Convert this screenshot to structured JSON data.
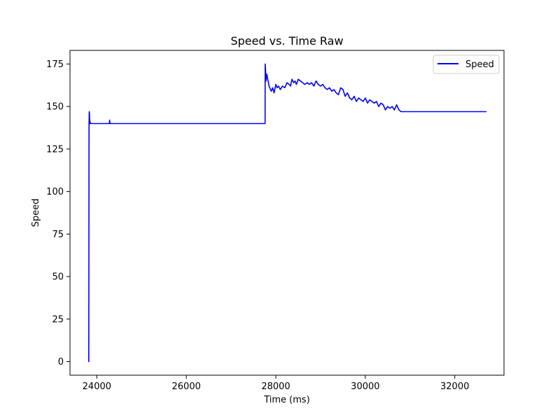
{
  "chart_data": {
    "type": "line",
    "title": "Speed vs. Time Raw",
    "xlabel": "Time (ms)",
    "ylabel": "Speed",
    "xlim": [
      23400,
      33100
    ],
    "ylim": [
      -8,
      183
    ],
    "xticks": [
      24000,
      26000,
      28000,
      30000,
      32000
    ],
    "yticks": [
      0,
      25,
      50,
      75,
      100,
      125,
      150,
      175
    ],
    "grid": false,
    "legend_position": "top-right",
    "series": [
      {
        "name": "Speed",
        "color": "#0000ff",
        "x": [
          23820,
          23822,
          23824,
          23826,
          23828,
          23831,
          23835,
          23838,
          23842,
          23846,
          23850,
          23855,
          23870,
          24270,
          24280,
          24285,
          24290,
          24295,
          24300,
          24310,
          24400,
          25000,
          26000,
          27000,
          27700,
          27760,
          27762,
          27770,
          27780,
          27800,
          27820,
          27850,
          27880,
          27900,
          27930,
          27960,
          28000,
          28030,
          28060,
          28100,
          28150,
          28200,
          28250,
          28300,
          28330,
          28360,
          28400,
          28430,
          28460,
          28500,
          28550,
          28600,
          28650,
          28700,
          28750,
          28800,
          28850,
          28900,
          28950,
          29000,
          29050,
          29100,
          29150,
          29200,
          29250,
          29300,
          29350,
          29400,
          29450,
          29500,
          29550,
          29600,
          29650,
          29700,
          29750,
          29800,
          29850,
          29900,
          29950,
          30000,
          30050,
          30100,
          30150,
          30200,
          30250,
          30300,
          30350,
          30400,
          30450,
          30500,
          30550,
          30600,
          30650,
          30700,
          30750,
          30800,
          31000,
          31500,
          32000,
          32700
        ],
        "y": [
          0,
          60,
          110,
          140,
          145,
          147,
          146,
          143,
          141,
          140,
          141,
          140,
          140,
          140,
          140,
          142,
          141,
          140,
          140,
          140,
          140,
          140,
          140,
          140,
          140,
          140,
          175,
          172,
          165,
          169,
          166,
          162,
          160,
          159,
          161,
          158,
          163,
          161,
          162,
          160,
          162,
          161,
          164,
          163,
          162,
          166,
          164,
          165,
          163,
          166,
          165,
          164,
          163,
          164,
          163,
          164,
          162,
          165,
          163,
          162,
          163,
          161,
          160,
          161,
          159,
          160,
          158,
          157,
          161,
          160,
          156,
          158,
          155,
          154,
          156,
          153,
          155,
          154,
          153,
          155,
          152,
          154,
          153,
          152,
          153,
          150,
          152,
          151,
          148,
          150,
          149,
          150,
          148,
          151,
          148,
          147,
          147,
          147,
          147,
          147
        ]
      }
    ]
  }
}
